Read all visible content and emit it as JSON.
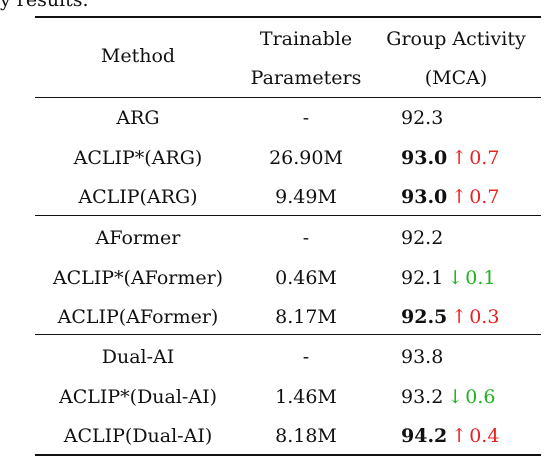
{
  "caption_tail": "y results.",
  "header": {
    "method": "Method",
    "params_line1": "Trainable",
    "params_line2": "Parameters",
    "acc_line1": "Group Activity",
    "acc_line2": "(MCA)"
  },
  "groups": [
    {
      "rows": [
        {
          "method": "ARG",
          "params": "-",
          "value": "92.3",
          "bold": false,
          "delta": null
        },
        {
          "method": "ACLIP*(ARG)",
          "params": "26.90M",
          "value": "93.0",
          "bold": true,
          "delta": {
            "dir": "up",
            "arrow": "↑",
            "amount": "0.7",
            "color": "#e8231f"
          }
        },
        {
          "method": "ACLIP(ARG)",
          "params": "9.49M",
          "value": "93.0",
          "bold": true,
          "delta": {
            "dir": "up",
            "arrow": "↑",
            "amount": "0.7",
            "color": "#e8231f"
          }
        }
      ]
    },
    {
      "rows": [
        {
          "method": "AFormer",
          "params": "-",
          "value": "92.2",
          "bold": false,
          "delta": null
        },
        {
          "method": "ACLIP*(AFormer)",
          "params": "0.46M",
          "value": "92.1",
          "bold": false,
          "delta": {
            "dir": "down",
            "arrow": "↓",
            "amount": "0.1",
            "color": "#1db31d"
          }
        },
        {
          "method": "ACLIP(AFormer)",
          "params": "8.17M",
          "value": "92.5",
          "bold": true,
          "delta": {
            "dir": "up",
            "arrow": "↑",
            "amount": "0.3",
            "color": "#e8231f"
          }
        }
      ]
    },
    {
      "rows": [
        {
          "method": "Dual-AI",
          "params": "-",
          "value": "93.8",
          "bold": false,
          "delta": null
        },
        {
          "method": "ACLIP*(Dual-AI)",
          "params": "1.46M",
          "value": "93.2",
          "bold": false,
          "delta": {
            "dir": "down",
            "arrow": "↓",
            "amount": "0.6",
            "color": "#1db31d"
          }
        },
        {
          "method": "ACLIP(Dual-AI)",
          "params": "8.18M",
          "value": "94.2",
          "bold": true,
          "delta": {
            "dir": "up",
            "arrow": "↑",
            "amount": "0.4",
            "color": "#e8231f"
          }
        }
      ]
    }
  ]
}
